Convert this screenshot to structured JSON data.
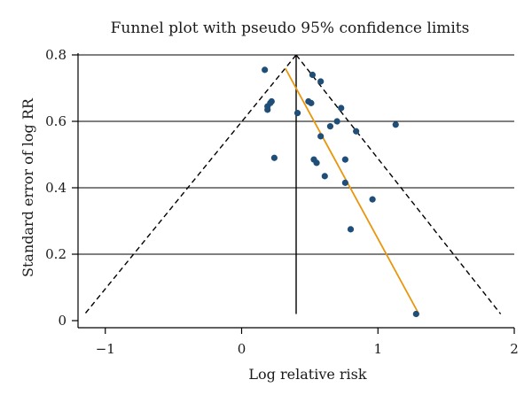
{
  "chart_data": {
    "type": "scatter",
    "title": "Funnel plot with pseudo 95% confidence limits",
    "xlabel": "Log relative risk",
    "ylabel": "Standard error of log RR",
    "xlim": [
      -1.2,
      2.0
    ],
    "ylim": [
      0,
      0.8
    ],
    "y_reversed": false,
    "xticks": [
      -1,
      0,
      1,
      2
    ],
    "xtick_labels": [
      "−1",
      "0",
      "1",
      "2"
    ],
    "yticks": [
      0,
      0.2,
      0.4,
      0.6,
      0.8
    ],
    "ytick_labels": [
      "0",
      "0.2",
      "0.4",
      "0.6",
      "0.8"
    ],
    "grid": "horizontal",
    "pooled_estimate": 0.4,
    "pooled_line_y_range": [
      0.02,
      0.8
    ],
    "funnel_limits": {
      "apex": [
        0.4,
        0.8
      ],
      "left_base": [
        -1.15,
        0.02
      ],
      "right_base": [
        1.9,
        0.02
      ]
    },
    "regression_line": {
      "from": [
        0.32,
        0.76
      ],
      "to": [
        1.3,
        0.02
      ]
    },
    "points": [
      {
        "x": 0.17,
        "y": 0.755
      },
      {
        "x": 0.22,
        "y": 0.66
      },
      {
        "x": 0.21,
        "y": 0.655
      },
      {
        "x": 0.19,
        "y": 0.645
      },
      {
        "x": 0.19,
        "y": 0.635
      },
      {
        "x": 0.24,
        "y": 0.49
      },
      {
        "x": 0.41,
        "y": 0.625
      },
      {
        "x": 0.49,
        "y": 0.66
      },
      {
        "x": 0.51,
        "y": 0.655
      },
      {
        "x": 0.52,
        "y": 0.74
      },
      {
        "x": 0.58,
        "y": 0.72
      },
      {
        "x": 0.53,
        "y": 0.485
      },
      {
        "x": 0.55,
        "y": 0.475
      },
      {
        "x": 0.58,
        "y": 0.555
      },
      {
        "x": 0.61,
        "y": 0.435
      },
      {
        "x": 0.65,
        "y": 0.585
      },
      {
        "x": 0.7,
        "y": 0.6
      },
      {
        "x": 0.73,
        "y": 0.64
      },
      {
        "x": 0.76,
        "y": 0.485
      },
      {
        "x": 0.76,
        "y": 0.415
      },
      {
        "x": 0.8,
        "y": 0.275
      },
      {
        "x": 0.84,
        "y": 0.57
      },
      {
        "x": 0.96,
        "y": 0.365
      },
      {
        "x": 1.13,
        "y": 0.59
      },
      {
        "x": 1.28,
        "y": 0.02
      }
    ],
    "colors": {
      "points": "#1f4e79",
      "regression": "#e8960c",
      "lines": "#000000"
    }
  }
}
